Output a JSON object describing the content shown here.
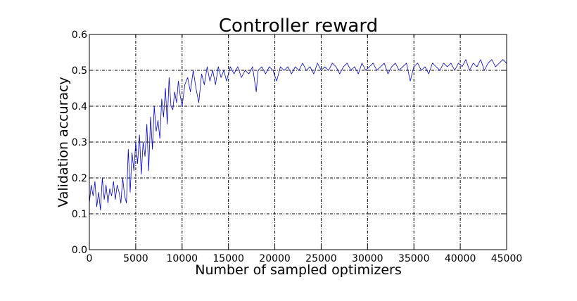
{
  "chart_data": {
    "type": "line",
    "title": "Controller reward",
    "xlabel": "Number of sampled optimizers",
    "ylabel": "Validation accuracy",
    "xlim": [
      0,
      45000
    ],
    "ylim": [
      0.0,
      0.6
    ],
    "xticks": [
      0,
      5000,
      10000,
      15000,
      20000,
      25000,
      30000,
      35000,
      40000,
      45000
    ],
    "xtick_labels": [
      "0",
      "5000",
      "10000",
      "15000",
      "20000",
      "25000",
      "30000",
      "35000",
      "40000",
      "45000"
    ],
    "yticks": [
      0.0,
      0.1,
      0.2,
      0.3,
      0.4,
      0.5,
      0.6
    ],
    "ytick_labels": [
      "0.0",
      "0.1",
      "0.2",
      "0.3",
      "0.4",
      "0.5",
      "0.6"
    ],
    "grid": true,
    "legend": false,
    "series": [
      {
        "color": "#0000cc",
        "x": [
          0,
          200,
          400,
          600,
          800,
          1000,
          1200,
          1400,
          1600,
          1800,
          2000,
          2200,
          2400,
          2600,
          2800,
          3000,
          3200,
          3400,
          3600,
          3800,
          4000,
          4200,
          4400,
          4600,
          4800,
          5000,
          5200,
          5400,
          5600,
          5800,
          6000,
          6200,
          6400,
          6600,
          6800,
          7000,
          7200,
          7400,
          7600,
          7800,
          8000,
          8200,
          8400,
          8600,
          8800,
          9000,
          9200,
          9400,
          9600,
          9800,
          10000,
          10300,
          10600,
          10900,
          11200,
          11500,
          11800,
          12100,
          12400,
          12700,
          13000,
          13300,
          13600,
          13900,
          14200,
          14500,
          14800,
          15200,
          15600,
          16000,
          16400,
          16800,
          17200,
          17600,
          18000,
          18200,
          18600,
          19000,
          19400,
          19800,
          20200,
          20600,
          21000,
          21400,
          21800,
          22200,
          22600,
          23000,
          23400,
          23800,
          24200,
          24600,
          25000,
          25400,
          25800,
          26200,
          26600,
          27000,
          27400,
          27800,
          28200,
          28600,
          29000,
          29400,
          29800,
          30200,
          30600,
          31000,
          31400,
          31800,
          32200,
          32600,
          33000,
          33400,
          33800,
          34200,
          34600,
          35000,
          35400,
          35800,
          36200,
          36600,
          37000,
          37400,
          37800,
          38200,
          38600,
          39000,
          39400,
          39800,
          40200,
          40600,
          41000,
          41400,
          41800,
          42200,
          42600,
          43000,
          43400,
          43800,
          44200,
          44600,
          45000
        ],
        "y": [
          0.13,
          0.18,
          0.15,
          0.19,
          0.12,
          0.16,
          0.11,
          0.2,
          0.14,
          0.18,
          0.13,
          0.17,
          0.15,
          0.19,
          0.14,
          0.18,
          0.16,
          0.13,
          0.2,
          0.15,
          0.13,
          0.28,
          0.16,
          0.27,
          0.22,
          0.3,
          0.24,
          0.32,
          0.21,
          0.3,
          0.26,
          0.35,
          0.22,
          0.37,
          0.28,
          0.4,
          0.33,
          0.36,
          0.31,
          0.42,
          0.37,
          0.45,
          0.35,
          0.48,
          0.4,
          0.39,
          0.44,
          0.41,
          0.47,
          0.43,
          0.4,
          0.46,
          0.48,
          0.44,
          0.5,
          0.45,
          0.41,
          0.49,
          0.46,
          0.51,
          0.47,
          0.5,
          0.46,
          0.51,
          0.48,
          0.5,
          0.47,
          0.51,
          0.49,
          0.51,
          0.48,
          0.5,
          0.49,
          0.51,
          0.44,
          0.5,
          0.51,
          0.49,
          0.51,
          0.5,
          0.47,
          0.51,
          0.5,
          0.51,
          0.49,
          0.51,
          0.5,
          0.52,
          0.5,
          0.51,
          0.49,
          0.52,
          0.5,
          0.51,
          0.5,
          0.52,
          0.51,
          0.49,
          0.51,
          0.52,
          0.5,
          0.51,
          0.49,
          0.52,
          0.5,
          0.51,
          0.52,
          0.5,
          0.51,
          0.52,
          0.49,
          0.51,
          0.52,
          0.5,
          0.51,
          0.52,
          0.47,
          0.51,
          0.52,
          0.5,
          0.51,
          0.49,
          0.52,
          0.51,
          0.5,
          0.52,
          0.51,
          0.52,
          0.5,
          0.52,
          0.51,
          0.53,
          0.5,
          0.52,
          0.51,
          0.53,
          0.5,
          0.52,
          0.53,
          0.51,
          0.52,
          0.53,
          0.52
        ]
      }
    ]
  }
}
